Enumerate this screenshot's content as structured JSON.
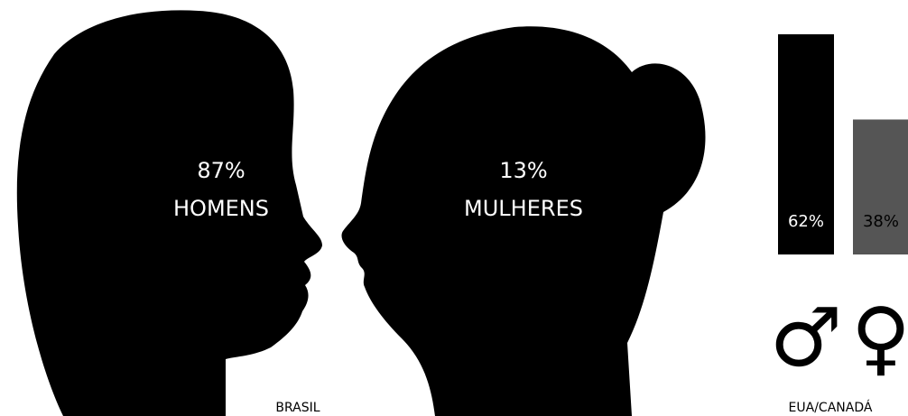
{
  "brasil": {
    "items": [
      {
        "value_label": "87%",
        "label": "HOMENS"
      },
      {
        "value_label": "13%",
        "label": "MULHERES"
      }
    ],
    "caption": "BRASIL"
  },
  "chart_data": {
    "type": "bar",
    "caption": "EUA/CANADÁ",
    "categories": [
      "♂",
      "♀"
    ],
    "values": [
      62,
      38
    ],
    "value_labels": [
      "62%",
      "38%"
    ],
    "colors": [
      "#000000",
      "#555555"
    ],
    "label_colors": [
      "#ffffff",
      "#000000"
    ]
  }
}
